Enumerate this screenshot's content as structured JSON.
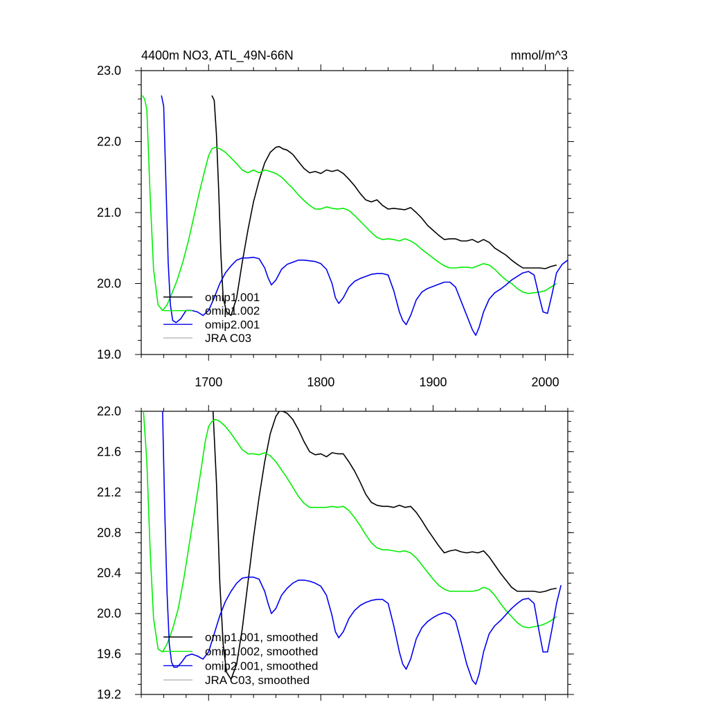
{
  "chart_data": [
    {
      "type": "line",
      "title": "4400m NO3, ATL_49N-66N",
      "units": "mmol/m^3",
      "xlim": [
        1640,
        2020
      ],
      "ylim": [
        19.0,
        23.0
      ],
      "xticks": [
        1700,
        1800,
        1900,
        2000
      ],
      "xtick_labels": [
        "1700",
        "1800",
        "1900",
        "2000"
      ],
      "yticks": [
        19.0,
        20.0,
        21.0,
        22.0,
        23.0
      ],
      "ytick_labels": [
        "19.0",
        "20.0",
        "21.0",
        "22.0",
        "23.0"
      ],
      "legend_position": "bottom-left",
      "series": [
        {
          "name": "omip1.001",
          "color": "#000000",
          "x": [
            1703,
            1705,
            1707,
            1709,
            1711,
            1713,
            1716,
            1720,
            1725,
            1730,
            1735,
            1740,
            1745,
            1750,
            1755,
            1760,
            1763,
            1766,
            1770,
            1775,
            1780,
            1785,
            1790,
            1795,
            1800,
            1805,
            1810,
            1815,
            1820,
            1825,
            1830,
            1835,
            1840,
            1845,
            1850,
            1855,
            1860,
            1865,
            1870,
            1875,
            1880,
            1885,
            1890,
            1895,
            1900,
            1905,
            1910,
            1915,
            1920,
            1925,
            1930,
            1935,
            1940,
            1945,
            1950,
            1955,
            1960,
            1965,
            1970,
            1975,
            1980,
            1985,
            1990,
            1995,
            2000,
            2005,
            2010
          ],
          "y": [
            22.65,
            22.58,
            22.1,
            21.3,
            20.4,
            19.8,
            19.6,
            19.55,
            19.8,
            20.3,
            20.75,
            21.15,
            21.45,
            21.7,
            21.85,
            21.92,
            21.93,
            21.9,
            21.88,
            21.82,
            21.72,
            21.62,
            21.56,
            21.58,
            21.55,
            21.6,
            21.58,
            21.6,
            21.55,
            21.47,
            21.38,
            21.27,
            21.18,
            21.15,
            21.18,
            21.1,
            21.05,
            21.06,
            21.05,
            21.04,
            21.07,
            21.0,
            20.92,
            20.82,
            20.75,
            20.68,
            20.62,
            20.63,
            20.63,
            20.6,
            20.6,
            20.62,
            20.58,
            20.62,
            20.58,
            20.5,
            20.45,
            20.4,
            20.33,
            20.27,
            20.22,
            20.22,
            20.22,
            20.22,
            20.21,
            20.24,
            20.26
          ]
        },
        {
          "name": "omip1.002",
          "color": "#00ee00",
          "x": [
            1641,
            1643,
            1645,
            1648,
            1651,
            1655,
            1659,
            1663,
            1667,
            1672,
            1677,
            1682,
            1687,
            1692,
            1697,
            1700,
            1703,
            1706,
            1710,
            1715,
            1720,
            1725,
            1730,
            1735,
            1740,
            1745,
            1750,
            1755,
            1760,
            1765,
            1770,
            1775,
            1780,
            1785,
            1790,
            1795,
            1800,
            1805,
            1810,
            1815,
            1820,
            1825,
            1830,
            1835,
            1840,
            1845,
            1850,
            1855,
            1860,
            1865,
            1870,
            1875,
            1880,
            1885,
            1890,
            1895,
            1900,
            1905,
            1910,
            1915,
            1920,
            1925,
            1930,
            1935,
            1940,
            1945,
            1950,
            1955,
            1960,
            1965,
            1970,
            1975,
            1980,
            1985,
            1990,
            1995,
            2000,
            2005,
            2010
          ],
          "y": [
            22.65,
            22.6,
            22.45,
            21.2,
            20.2,
            19.7,
            19.62,
            19.7,
            19.85,
            20.05,
            20.3,
            20.6,
            20.95,
            21.3,
            21.62,
            21.8,
            21.9,
            21.92,
            21.9,
            21.85,
            21.77,
            21.69,
            21.6,
            21.56,
            21.6,
            21.56,
            21.6,
            21.58,
            21.55,
            21.5,
            21.42,
            21.34,
            21.25,
            21.17,
            21.1,
            21.05,
            21.05,
            21.08,
            21.06,
            21.05,
            21.06,
            21.03,
            20.96,
            20.88,
            20.8,
            20.72,
            20.65,
            20.62,
            20.63,
            20.62,
            20.6,
            20.63,
            20.6,
            20.55,
            20.48,
            20.42,
            20.36,
            20.3,
            20.25,
            20.22,
            20.22,
            20.23,
            20.23,
            20.22,
            20.25,
            20.28,
            20.26,
            20.2,
            20.12,
            20.05,
            20.0,
            19.93,
            19.88,
            19.86,
            19.87,
            19.88,
            19.9,
            19.95,
            20.0
          ]
        },
        {
          "name": "omip2.001",
          "color": "#0000ee",
          "x": [
            1658,
            1660,
            1662,
            1664,
            1666,
            1668,
            1671,
            1675,
            1680,
            1685,
            1690,
            1695,
            1700,
            1705,
            1710,
            1715,
            1720,
            1725,
            1730,
            1735,
            1740,
            1745,
            1750,
            1753,
            1756,
            1760,
            1765,
            1770,
            1775,
            1780,
            1785,
            1790,
            1795,
            1800,
            1805,
            1810,
            1813,
            1816,
            1820,
            1825,
            1830,
            1835,
            1840,
            1845,
            1850,
            1855,
            1860,
            1865,
            1870,
            1873,
            1876,
            1880,
            1885,
            1890,
            1895,
            1900,
            1905,
            1910,
            1915,
            1920,
            1925,
            1930,
            1935,
            1938,
            1941,
            1945,
            1950,
            1955,
            1960,
            1965,
            1970,
            1975,
            1980,
            1985,
            1990,
            1994,
            1998,
            2002,
            2006,
            2010,
            2015,
            2020
          ],
          "y": [
            22.65,
            22.5,
            21.4,
            20.3,
            19.7,
            19.48,
            19.45,
            19.5,
            19.62,
            19.62,
            19.6,
            19.55,
            19.62,
            19.8,
            20.0,
            20.15,
            20.25,
            20.33,
            20.36,
            20.36,
            20.37,
            20.35,
            20.22,
            20.08,
            19.98,
            20.05,
            20.2,
            20.27,
            20.3,
            20.33,
            20.33,
            20.32,
            20.31,
            20.28,
            20.2,
            20.0,
            19.8,
            19.72,
            19.8,
            19.95,
            20.03,
            20.07,
            20.1,
            20.13,
            20.14,
            20.14,
            20.12,
            19.9,
            19.6,
            19.48,
            19.42,
            19.55,
            19.77,
            19.88,
            19.93,
            19.96,
            19.99,
            20.02,
            20.02,
            19.95,
            19.75,
            19.55,
            19.35,
            19.27,
            19.38,
            19.6,
            19.78,
            19.87,
            19.92,
            19.98,
            20.05,
            20.1,
            20.15,
            20.17,
            20.12,
            19.85,
            19.6,
            19.58,
            19.85,
            20.15,
            20.27,
            20.33
          ]
        },
        {
          "name": "JRA C03",
          "color": "#b5b5b5",
          "x": [],
          "y": []
        }
      ]
    },
    {
      "type": "line",
      "title": "",
      "xlim": [
        1640,
        2020
      ],
      "ylim": [
        19.2,
        22.0
      ],
      "xticks": [
        1700,
        1800,
        1900,
        2000
      ],
      "yticks": [
        19.2,
        19.6,
        20.0,
        20.4,
        20.8,
        21.2,
        21.6,
        22.0
      ],
      "ytick_labels": [
        "19.2",
        "19.6",
        "20.0",
        "20.4",
        "20.8",
        "21.2",
        "21.6",
        "22.0"
      ],
      "legend_position": "bottom-left",
      "series": [
        {
          "name": "omip1.001, smoothed",
          "color": "#000000",
          "x": [
            1704,
            1707,
            1710,
            1713,
            1716,
            1720,
            1725,
            1730,
            1735,
            1740,
            1745,
            1750,
            1755,
            1760,
            1763,
            1766,
            1770,
            1775,
            1780,
            1785,
            1790,
            1795,
            1800,
            1805,
            1810,
            1815,
            1820,
            1825,
            1830,
            1835,
            1840,
            1845,
            1850,
            1855,
            1860,
            1865,
            1870,
            1875,
            1880,
            1885,
            1890,
            1895,
            1900,
            1905,
            1910,
            1915,
            1920,
            1925,
            1930,
            1935,
            1940,
            1945,
            1950,
            1955,
            1960,
            1965,
            1970,
            1975,
            1980,
            1985,
            1990,
            1995,
            2000,
            2005,
            2010
          ],
          "y": [
            22.0,
            21.3,
            20.3,
            19.7,
            19.42,
            19.35,
            19.5,
            19.85,
            20.3,
            20.75,
            21.15,
            21.5,
            21.78,
            21.95,
            22.0,
            22.0,
            21.98,
            21.92,
            21.82,
            21.7,
            21.6,
            21.57,
            21.58,
            21.55,
            21.59,
            21.58,
            21.58,
            21.5,
            21.41,
            21.3,
            21.18,
            21.1,
            21.07,
            21.06,
            21.06,
            21.05,
            21.07,
            21.05,
            21.06,
            21.0,
            20.92,
            20.83,
            20.75,
            20.67,
            20.6,
            20.62,
            20.63,
            20.61,
            20.6,
            20.61,
            20.6,
            20.62,
            20.56,
            20.48,
            20.4,
            20.33,
            20.26,
            20.22,
            20.22,
            20.22,
            20.22,
            20.21,
            20.22,
            20.24,
            20.25
          ]
        },
        {
          "name": "omip1.002, smoothed",
          "color": "#00ee00",
          "x": [
            1642,
            1645,
            1648,
            1651,
            1655,
            1659,
            1663,
            1668,
            1673,
            1678,
            1683,
            1688,
            1693,
            1697,
            1700,
            1703,
            1706,
            1710,
            1715,
            1720,
            1725,
            1730,
            1735,
            1740,
            1745,
            1750,
            1755,
            1760,
            1765,
            1770,
            1775,
            1780,
            1785,
            1790,
            1795,
            1800,
            1805,
            1810,
            1815,
            1820,
            1825,
            1830,
            1835,
            1840,
            1845,
            1850,
            1855,
            1860,
            1865,
            1870,
            1875,
            1880,
            1885,
            1890,
            1895,
            1900,
            1905,
            1910,
            1915,
            1920,
            1925,
            1930,
            1935,
            1940,
            1945,
            1950,
            1955,
            1960,
            1965,
            1970,
            1975,
            1980,
            1985,
            1990,
            1995,
            2000,
            2005,
            2010
          ],
          "y": [
            22.0,
            21.5,
            20.6,
            19.95,
            19.65,
            19.62,
            19.7,
            19.85,
            20.05,
            20.35,
            20.7,
            21.05,
            21.4,
            21.7,
            21.85,
            21.9,
            21.92,
            21.9,
            21.85,
            21.78,
            21.7,
            21.62,
            21.58,
            21.58,
            21.57,
            21.59,
            21.56,
            21.5,
            21.42,
            21.34,
            21.25,
            21.16,
            21.09,
            21.05,
            21.05,
            21.05,
            21.05,
            21.06,
            21.05,
            21.06,
            21.02,
            20.95,
            20.87,
            20.78,
            20.7,
            20.65,
            20.63,
            20.63,
            20.62,
            20.61,
            20.62,
            20.6,
            20.55,
            20.48,
            20.41,
            20.34,
            20.28,
            20.24,
            20.22,
            20.22,
            20.22,
            20.22,
            20.22,
            20.23,
            20.26,
            20.24,
            20.18,
            20.1,
            20.03,
            19.97,
            19.91,
            19.87,
            19.86,
            19.87,
            19.88,
            19.9,
            19.93,
            19.97
          ]
        },
        {
          "name": "omip2.001, smoothed",
          "color": "#0000ee",
          "x": [
            1659,
            1661,
            1663,
            1665,
            1667,
            1669,
            1672,
            1676,
            1680,
            1685,
            1690,
            1695,
            1700,
            1705,
            1710,
            1715,
            1720,
            1725,
            1730,
            1735,
            1740,
            1745,
            1750,
            1753,
            1756,
            1760,
            1765,
            1770,
            1775,
            1780,
            1785,
            1790,
            1795,
            1800,
            1805,
            1810,
            1813,
            1816,
            1820,
            1825,
            1830,
            1835,
            1840,
            1845,
            1850,
            1855,
            1860,
            1865,
            1870,
            1873,
            1876,
            1880,
            1885,
            1890,
            1895,
            1900,
            1905,
            1910,
            1915,
            1920,
            1925,
            1930,
            1935,
            1938,
            1941,
            1945,
            1950,
            1955,
            1960,
            1965,
            1970,
            1975,
            1980,
            1985,
            1990,
            1994,
            1998,
            2002,
            2006,
            2010,
            2014
          ],
          "y": [
            22.0,
            21.0,
            20.2,
            19.7,
            19.52,
            19.47,
            19.47,
            19.52,
            19.58,
            19.6,
            19.58,
            19.55,
            19.62,
            19.8,
            19.98,
            20.12,
            20.22,
            20.3,
            20.35,
            20.36,
            20.36,
            20.34,
            20.22,
            20.1,
            20.0,
            20.05,
            20.18,
            20.25,
            20.3,
            20.33,
            20.33,
            20.32,
            20.3,
            20.27,
            20.18,
            19.98,
            19.82,
            19.76,
            19.82,
            19.95,
            20.03,
            20.08,
            20.11,
            20.13,
            20.14,
            20.14,
            20.1,
            19.88,
            19.62,
            19.5,
            19.45,
            19.55,
            19.75,
            19.86,
            19.92,
            19.96,
            19.99,
            20.01,
            19.99,
            19.93,
            19.72,
            19.5,
            19.34,
            19.3,
            19.4,
            19.62,
            19.8,
            19.88,
            19.93,
            19.99,
            20.05,
            20.1,
            20.14,
            20.15,
            20.1,
            19.85,
            19.62,
            19.62,
            19.85,
            20.1,
            20.28
          ]
        },
        {
          "name": "JRA C03, smoothed",
          "color": "#b5b5b5",
          "x": [],
          "y": []
        }
      ]
    }
  ]
}
